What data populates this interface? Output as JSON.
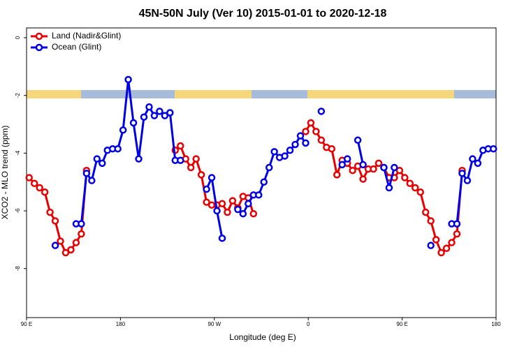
{
  "chart_data": {
    "type": "line",
    "title": "45N-50N July (Ver 10)   2015-01-01 to 2020-12-18",
    "xlabel": "Longitude (deg E)",
    "ylabel": "XCO2 - MLO trend (ppm)",
    "x": [
      92.5,
      97.5,
      102.5,
      107.5,
      112.5,
      117.5,
      122.5,
      127.5,
      132.5,
      137.5,
      142.5,
      147.5,
      152.5,
      157.5,
      162.5,
      167.5,
      172.5,
      177.5,
      182.5,
      187.5,
      192.5,
      197.5,
      202.5,
      207.5,
      212.5,
      217.5,
      222.5,
      227.5,
      232.5,
      237.5,
      242.5,
      247.5,
      252.5,
      257.5,
      262.5,
      267.5,
      272.5,
      277.5,
      282.5,
      287.5,
      292.5,
      297.5,
      302.5,
      307.5,
      312.5,
      317.5,
      322.5,
      327.5,
      332.5,
      337.5,
      342.5,
      347.5,
      352.5,
      357.5,
      362.5,
      367.5,
      372.5,
      377.5,
      382.5,
      387.5,
      392.5,
      397.5,
      402.5,
      407.5,
      412.5,
      417.5,
      422.5,
      427.5,
      432.5,
      437.5,
      442.5,
      447.5,
      452.5,
      457.5,
      462.5,
      467.5,
      472.5,
      477.5,
      482.5,
      487.5,
      492.5,
      497.5,
      502.5,
      507.5,
      512.5,
      517.5,
      522.5,
      527.5,
      532.5,
      537.5
    ],
    "series": [
      {
        "name": "Land (Nadir&Glint)",
        "color": "#e80000",
        "values": [
          -4.85,
          -5.05,
          -5.2,
          -5.35,
          -6.05,
          -6.35,
          -7.05,
          -7.45,
          -7.35,
          -7.1,
          -6.8,
          -4.6,
          null,
          null,
          null,
          null,
          null,
          null,
          null,
          null,
          null,
          null,
          null,
          null,
          null,
          null,
          null,
          null,
          -3.9,
          -3.75,
          -4.2,
          -4.5,
          -4.2,
          -4.75,
          -5.7,
          -5.8,
          -5.8,
          -5.75,
          -6.05,
          -5.65,
          -5.9,
          -5.5,
          -5.55,
          -6.1,
          null,
          null,
          null,
          null,
          null,
          null,
          null,
          null,
          null,
          -3.25,
          -2.95,
          -3.25,
          -3.55,
          -3.8,
          -3.85,
          -4.75,
          -4.25,
          -4.35,
          -4.6,
          -4.45,
          -4.9,
          -4.55,
          -4.55,
          -4.35,
          -4.5,
          -4.85,
          -4.85,
          -4.6,
          -4.85,
          -5.05,
          -5.2,
          -5.35,
          -6.05,
          -6.35,
          -7.0,
          -7.45,
          -7.3,
          -7.1,
          -6.8,
          -4.6,
          null,
          null,
          null,
          null,
          null,
          null
        ]
      },
      {
        "name": "Ocean (Glint)",
        "color": "#0000e8",
        "values": [
          null,
          null,
          null,
          null,
          null,
          -7.2,
          null,
          null,
          null,
          -6.45,
          -6.45,
          -4.7,
          -4.95,
          -4.2,
          -4.35,
          -3.9,
          -3.85,
          -3.85,
          -3.2,
          -1.45,
          -2.95,
          -4.2,
          -2.75,
          -2.4,
          -2.7,
          -2.55,
          -2.7,
          -2.6,
          -4.25,
          -4.25,
          null,
          null,
          null,
          null,
          -5.25,
          -4.85,
          -6.0,
          -6.95,
          null,
          null,
          -5.95,
          -6.1,
          -5.75,
          -5.45,
          -5.45,
          -5.0,
          -4.5,
          -3.95,
          -4.15,
          -4.1,
          -3.9,
          -3.7,
          -3.4,
          -3.65,
          null,
          null,
          -2.55,
          null,
          null,
          null,
          -4.4,
          -4.2,
          null,
          -3.55,
          -4.4,
          null,
          null,
          null,
          -4.5,
          -5.2,
          -4.5,
          null,
          null,
          null,
          null,
          null,
          null,
          -7.2,
          null,
          null,
          null,
          -6.45,
          -6.45,
          -4.7,
          -4.95,
          -4.2,
          -4.35,
          -3.9,
          -3.85,
          -3.85
        ]
      }
    ],
    "xlim": [
      90,
      540
    ],
    "xticks": [
      {
        "value": 90,
        "label": "90 E"
      },
      {
        "value": 180,
        "label": "180"
      },
      {
        "value": 270,
        "label": "90 W"
      },
      {
        "value": 360,
        "label": "0"
      },
      {
        "value": 450,
        "label": "90 E"
      },
      {
        "value": 540,
        "label": "180"
      }
    ],
    "ylim": [
      -9.7,
      0.34
    ],
    "yticks": [
      0,
      -2,
      -4,
      -6,
      -8
    ],
    "legend": "upper left"
  }
}
